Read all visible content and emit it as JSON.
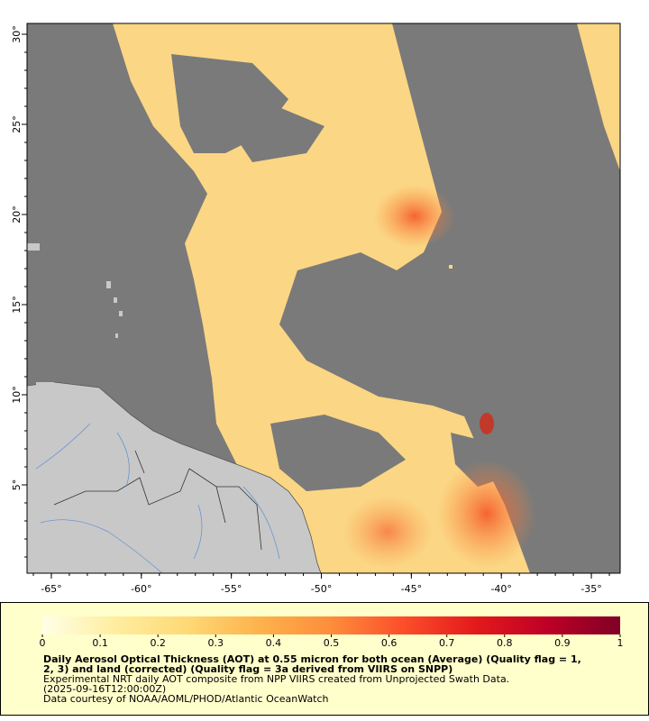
{
  "map": {
    "xlim": [
      -66.35,
      -33.4
    ],
    "ylim": [
      0.1,
      30.6
    ],
    "xticks": [
      {
        "value": -65,
        "label": "-65°"
      },
      {
        "value": -60,
        "label": "-60°"
      },
      {
        "value": -55,
        "label": "-55°"
      },
      {
        "value": -50,
        "label": "-50°"
      },
      {
        "value": -45,
        "label": "-45°"
      },
      {
        "value": -40,
        "label": "-40°"
      },
      {
        "value": -35,
        "label": "-35°"
      }
    ],
    "yticks": [
      {
        "value": 5,
        "label": "5°"
      },
      {
        "value": 10,
        "label": "10°"
      },
      {
        "value": 15,
        "label": "15°"
      },
      {
        "value": 20,
        "label": "20°"
      },
      {
        "value": 25,
        "label": "25°"
      },
      {
        "value": 30,
        "label": "30°"
      }
    ]
  },
  "colorbar": {
    "lim": [
      0,
      1
    ],
    "ticks": [
      0,
      0.1,
      0.2,
      0.3,
      0.4,
      0.5,
      0.6,
      0.7,
      0.8,
      0.9,
      1
    ],
    "colors": [
      "#ffffe8",
      "#ffeda0",
      "#fed976",
      "#feb24c",
      "#fd8d3c",
      "#fc4e2a",
      "#e31a1c",
      "#bd0026",
      "#800026"
    ]
  },
  "caption": {
    "lines": [
      "Daily Aerosol Optical Thickness (AOT) at 0.55 micron for both ocean (Average) (Quality flag = 1,",
      "2, 3) and land (corrected) (Quality flag = 3a derived from VIIRS on SNPP)",
      "Experimental NRT daily AOT composite from NPP VIIRS created from Unprojected Swath Data.",
      "(2025-09-16T12:00:00Z)",
      "Data courtesy of NOAA/AOML/PHOD/Atlantic OceanWatch"
    ]
  }
}
